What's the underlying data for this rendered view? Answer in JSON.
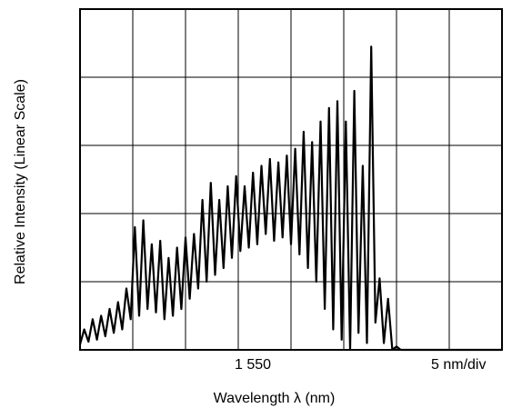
{
  "chart_data": {
    "type": "line",
    "xlabel": "Wavelength  λ (nm)",
    "ylabel": "Relative Intensity (Linear Scale)",
    "x_tick_labels": [
      "1 550",
      "5 nm/div"
    ],
    "x_axis": {
      "center_nm": 1550,
      "nm_per_div": 5,
      "divisions": 8,
      "xlim_nm": [
        1535,
        1575
      ]
    },
    "y_axis": {
      "divisions": 5,
      "ylim": [
        0,
        5
      ],
      "scale": "linear"
    },
    "grid": true,
    "series": [
      {
        "x": [
          1535.0,
          1535.4,
          1535.8,
          1536.2,
          1536.6,
          1537.0,
          1537.4,
          1537.8,
          1538.2,
          1538.6,
          1539.0,
          1539.4,
          1539.8,
          1540.2,
          1540.6,
          1541.0,
          1541.4,
          1541.8,
          1542.2,
          1542.6,
          1543.0,
          1543.4,
          1543.8,
          1544.2,
          1544.6,
          1545.0,
          1545.4,
          1545.8,
          1546.2,
          1546.6,
          1547.0,
          1547.4,
          1547.8,
          1548.2,
          1548.6,
          1549.0,
          1549.4,
          1549.8,
          1550.2,
          1550.6,
          1551.0,
          1551.4,
          1551.8,
          1552.2,
          1552.6,
          1553.0,
          1553.4,
          1553.8,
          1554.2,
          1554.6,
          1555.0,
          1555.4,
          1555.8,
          1556.2,
          1556.6,
          1557.0,
          1557.4,
          1557.8,
          1558.2,
          1558.6,
          1559.0,
          1559.4,
          1559.8,
          1560.2,
          1560.6,
          1561.0,
          1561.4,
          1561.8,
          1562.2,
          1562.6,
          1563.0,
          1563.4,
          1563.8,
          1564.2,
          1564.6,
          1565.0,
          1565.4,
          1565.8,
          1566.2,
          1566.6,
          1567.0,
          1567.4,
          1567.8,
          1568.2,
          1568.6,
          1569.0,
          1569.4,
          1569.8,
          1570.2,
          1570.6,
          1571.0,
          1571.4,
          1571.8,
          1572.2,
          1572.6,
          1573.0,
          1573.4,
          1573.8,
          1574.2,
          1574.6,
          1575.0
        ],
        "y": [
          0.08,
          0.3,
          0.12,
          0.45,
          0.15,
          0.5,
          0.2,
          0.6,
          0.25,
          0.7,
          0.3,
          0.9,
          0.45,
          1.8,
          0.5,
          1.9,
          0.6,
          1.55,
          0.55,
          1.6,
          0.45,
          1.35,
          0.5,
          1.5,
          0.6,
          1.65,
          0.75,
          1.7,
          0.9,
          2.2,
          1.0,
          2.45,
          1.1,
          2.2,
          1.2,
          2.4,
          1.35,
          2.55,
          1.45,
          2.4,
          1.5,
          2.6,
          1.55,
          2.7,
          1.7,
          2.8,
          1.6,
          2.75,
          1.65,
          2.85,
          1.55,
          2.95,
          1.4,
          3.2,
          1.2,
          3.05,
          1.0,
          3.35,
          0.6,
          3.55,
          0.3,
          3.65,
          0.15,
          3.35,
          0.0,
          3.8,
          0.25,
          2.7,
          0.1,
          4.45,
          0.4,
          1.05,
          0.1,
          0.75,
          0.0,
          0.05,
          0.0,
          0.0,
          0.0,
          0.0,
          0.0,
          0.0,
          0.0,
          0.0,
          0.0,
          0.0,
          0.0,
          0.0,
          0.0,
          0.0,
          0.0,
          0.0,
          0.0,
          0.0,
          0.0,
          0.0,
          0.0,
          0.0,
          0.0,
          0.0,
          0.0
        ]
      }
    ]
  },
  "colors": {
    "line": "#000000",
    "grid": "#000000",
    "background": "#ffffff"
  }
}
